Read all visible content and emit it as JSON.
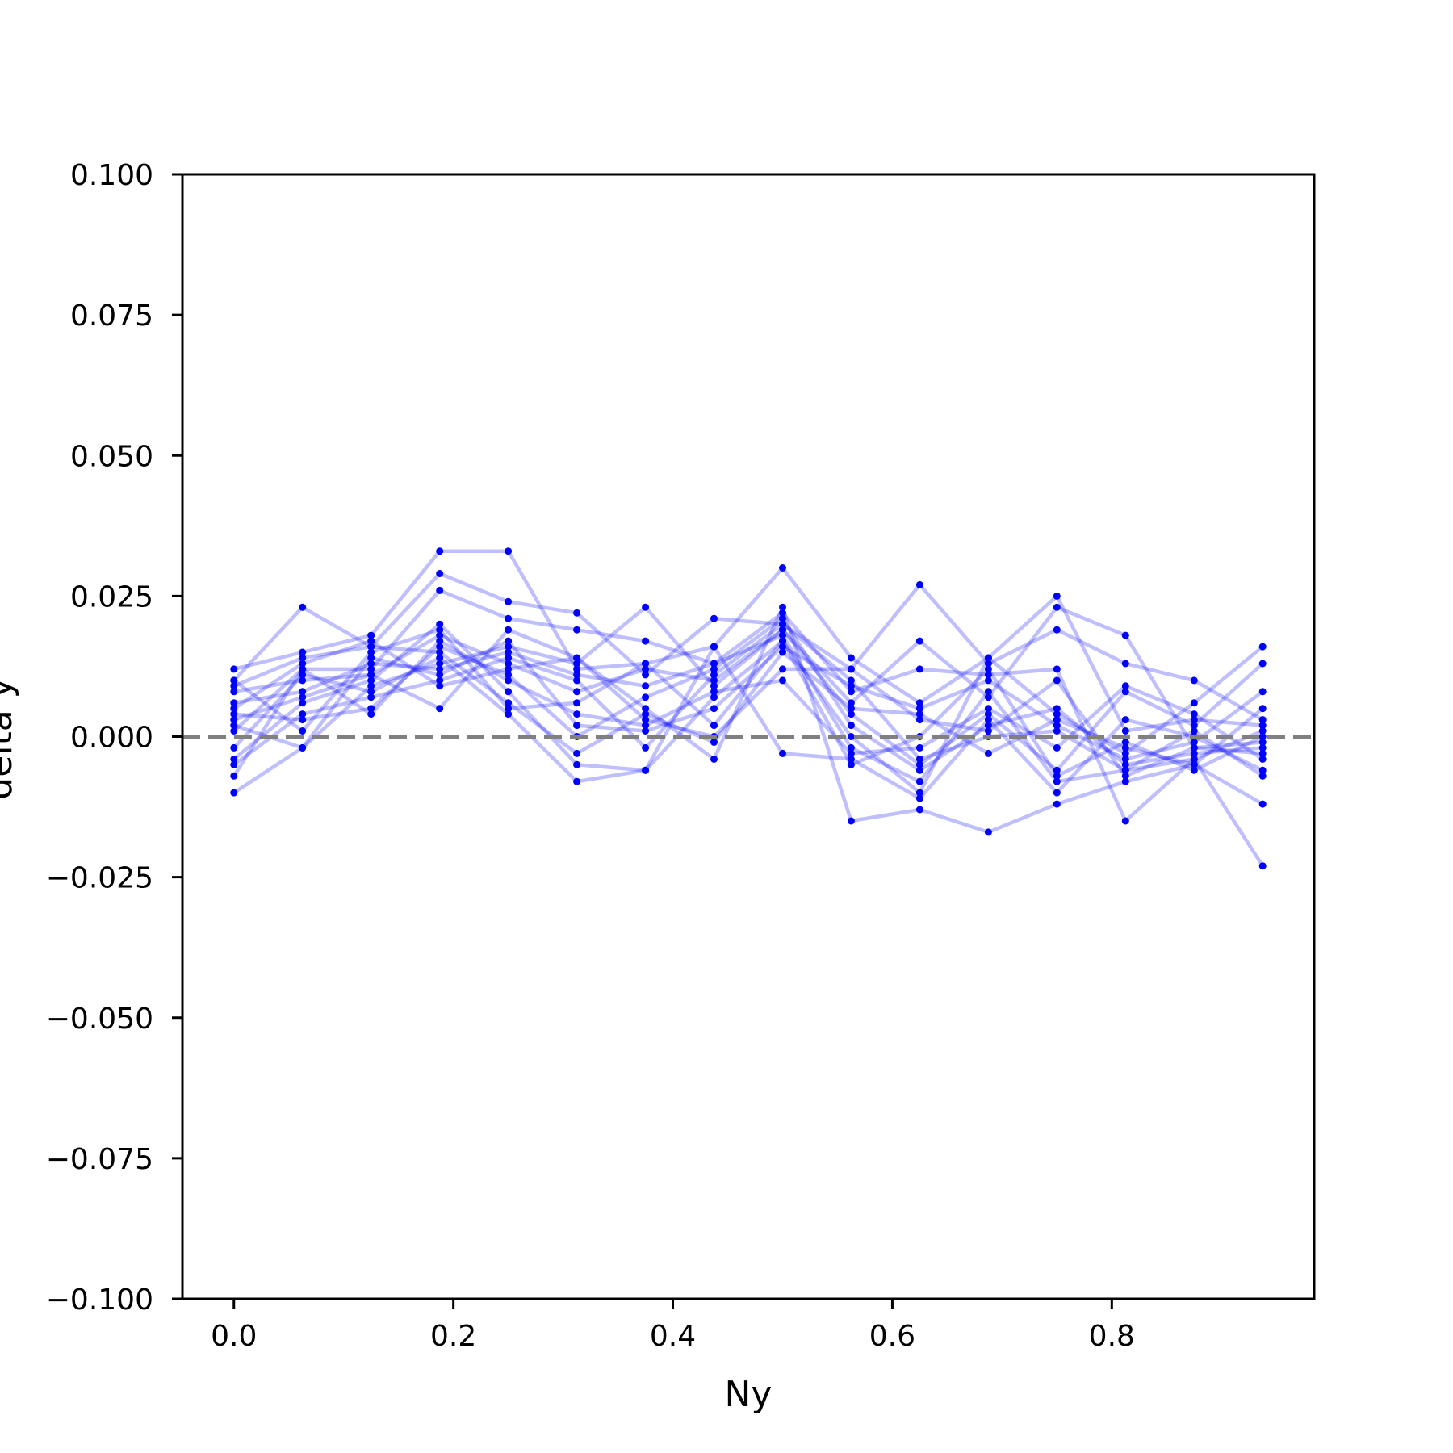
{
  "chart_data": {
    "type": "line",
    "title": "",
    "xlabel": "Ny",
    "ylabel": "delta y",
    "xlim": [
      -0.0469,
      0.9844
    ],
    "ylim": [
      -0.1,
      0.1
    ],
    "xticks": [
      0.0,
      0.2,
      0.4,
      0.6,
      0.8
    ],
    "xtick_labels": [
      "0.0",
      "0.2",
      "0.4",
      "0.6",
      "0.8"
    ],
    "yticks": [
      0.1,
      0.075,
      0.05,
      0.025,
      0.0,
      -0.025,
      -0.05,
      -0.075,
      -0.1
    ],
    "ytick_labels": [
      "0.100",
      "0.075",
      "0.050",
      "0.025",
      "0.000",
      "−0.025",
      "−0.050",
      "−0.075",
      "−0.100"
    ],
    "grid": false,
    "reference_line": {
      "y": 0.0,
      "style": "dashed",
      "color": "#808080"
    },
    "line_color": "#0000ff",
    "x": [
      0.0,
      0.0625,
      0.125,
      0.1875,
      0.25,
      0.3125,
      0.375,
      0.4375,
      0.5,
      0.5625,
      0.625,
      0.6875,
      0.75,
      0.8125,
      0.875,
      0.9375
    ],
    "series": [
      {
        "values": [
          0.012,
          0.015,
          0.018,
          0.033,
          0.033,
          0.012,
          0.013,
          0.016,
          0.03,
          0.014,
          0.006,
          0.014,
          0.025,
          0.001,
          0.003,
          0.002
        ]
      },
      {
        "values": [
          0.01,
          0.023,
          0.016,
          0.029,
          0.024,
          0.022,
          0.011,
          0.021,
          0.02,
          0.012,
          0.027,
          0.013,
          0.019,
          0.013,
          0.01,
          0.003
        ]
      },
      {
        "values": [
          -0.01,
          -0.002,
          0.009,
          0.013,
          0.016,
          0.013,
          0.023,
          0.009,
          0.019,
          0.006,
          0.017,
          0.007,
          0.023,
          0.018,
          -0.002,
          -0.001
        ]
      },
      {
        "values": [
          -0.007,
          0.012,
          0.012,
          0.026,
          0.021,
          0.019,
          0.017,
          0.013,
          0.022,
          0.008,
          0.012,
          0.011,
          0.012,
          -0.015,
          -0.004,
          -0.023
        ]
      },
      {
        "values": [
          -0.004,
          0.006,
          0.01,
          0.02,
          0.008,
          -0.005,
          -0.006,
          0.007,
          0.017,
          0.0,
          -0.01,
          0.014,
          0.004,
          -0.003,
          0.006,
          0.016
        ]
      },
      {
        "values": [
          0.005,
          0.013,
          0.017,
          0.009,
          0.012,
          0.014,
          0.005,
          -0.004,
          0.023,
          -0.015,
          -0.013,
          -0.017,
          -0.012,
          -0.008,
          -0.005,
          -0.012
        ]
      },
      {
        "values": [
          0.008,
          0.01,
          0.011,
          0.018,
          0.013,
          0.008,
          0.012,
          0.01,
          0.019,
          0.004,
          -0.005,
          0.004,
          -0.006,
          0.008,
          0.002,
          0.013
        ]
      },
      {
        "values": [
          0.002,
          -0.002,
          0.014,
          0.011,
          0.017,
          0.002,
          0.001,
          0.005,
          0.016,
          0.009,
          0.005,
          0.01,
          0.002,
          -0.004,
          -0.001,
          0.008
        ]
      },
      {
        "values": [
          0.004,
          0.003,
          0.005,
          0.016,
          0.011,
          0.0,
          0.007,
          0.012,
          0.021,
          0.002,
          -0.006,
          0.002,
          0.005,
          -0.005,
          -0.003,
          -0.002
        ]
      },
      {
        "values": [
          0.006,
          0.008,
          0.013,
          0.012,
          0.015,
          0.011,
          0.009,
          0.013,
          0.018,
          -0.002,
          -0.008,
          0.008,
          -0.008,
          -0.006,
          -0.004,
          0.001
        ]
      },
      {
        "values": [
          -0.002,
          0.011,
          0.008,
          0.014,
          0.004,
          -0.008,
          -0.006,
          0.016,
          -0.003,
          -0.004,
          -0.011,
          0.003,
          -0.01,
          0.003,
          0.0,
          -0.006
        ]
      },
      {
        "values": [
          0.003,
          0.007,
          0.011,
          0.005,
          0.019,
          0.014,
          0.003,
          0.0,
          0.012,
          0.012,
          0.003,
          0.001,
          0.01,
          -0.007,
          -0.002,
          -0.003
        ]
      },
      {
        "values": [
          0.001,
          0.012,
          0.004,
          0.017,
          0.01,
          0.004,
          0.002,
          0.008,
          0.01,
          -0.003,
          -0.002,
          0.005,
          -0.002,
          0.009,
          0.004,
          -0.004
        ]
      },
      {
        "values": [
          0.009,
          0.014,
          0.016,
          0.015,
          0.006,
          -0.003,
          0.004,
          -0.001,
          0.015,
          0.005,
          0.004,
          -0.003,
          0.003,
          -0.002,
          -0.005,
          0.005
        ]
      },
      {
        "values": [
          -0.005,
          0.004,
          0.007,
          0.01,
          0.014,
          0.01,
          -0.002,
          0.011,
          0.02,
          0.01,
          -0.004,
          0.0,
          0.001,
          -0.006,
          0.001,
          -0.007
        ]
      },
      {
        "values": [
          0.01,
          0.001,
          0.015,
          0.019,
          0.005,
          0.006,
          0.013,
          0.002,
          0.017,
          -0.005,
          0.0,
          0.012,
          -0.007,
          -0.001,
          -0.006,
          0.0
        ]
      }
    ]
  }
}
